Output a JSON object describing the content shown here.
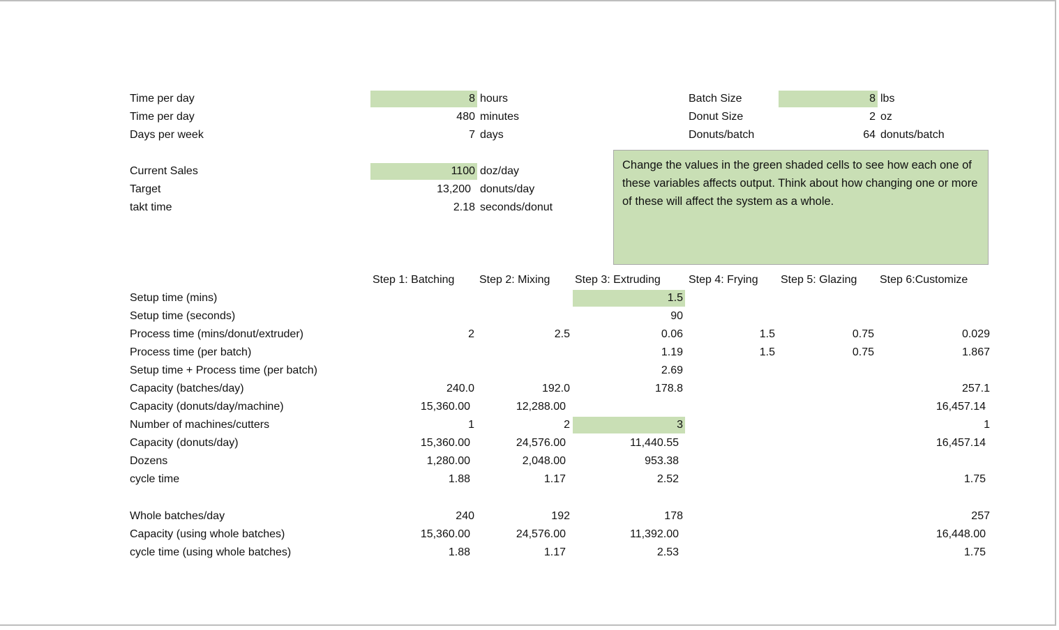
{
  "general": {
    "rows": [
      [
        "Time per day",
        "8",
        "hours"
      ],
      [
        "Time per day",
        "480",
        "minutes"
      ],
      [
        "Days per week",
        "7",
        "days"
      ],
      [
        "Current Sales",
        "1100",
        "doz/day"
      ],
      [
        "Target",
        "13,200",
        "donuts/day"
      ],
      [
        "takt time",
        "2.18",
        "seconds/donut"
      ]
    ]
  },
  "batch": {
    "rows": [
      [
        "Batch Size",
        "8",
        "lbs"
      ],
      [
        "Donut Size",
        "2",
        "oz"
      ],
      [
        "Donuts/batch",
        "64",
        "donuts/batch"
      ]
    ]
  },
  "note": "Change the values in the green shaded cells to see how each one of these variables affects output. Think about how changing one or more of these will affect the system as a whole.",
  "steps": {
    "headers": [
      "Step 1: Batching",
      "Step 2: Mixing",
      "Step 3: Extruding",
      "Step 4: Frying",
      "Step 5: Glazing",
      "Step 6:Customize"
    ],
    "rows": [
      {
        "label": "Setup time (mins)",
        "cells": [
          null,
          null,
          "1.5",
          null,
          null,
          null
        ]
      },
      {
        "label": "Setup time (seconds)",
        "cells": [
          null,
          null,
          "90",
          null,
          null,
          null
        ]
      },
      {
        "label": "Process time (mins/donut/extruder)",
        "cells": [
          "2",
          "2.5",
          "0.06",
          "1.5",
          "0.75",
          "0.029"
        ]
      },
      {
        "label": "Process time (per batch)",
        "cells": [
          null,
          null,
          "1.19",
          "1.5",
          "0.75",
          "1.867"
        ]
      },
      {
        "label": "Setup time + Process time (per batch)",
        "cells": [
          null,
          null,
          "2.69",
          null,
          null,
          null
        ]
      },
      {
        "label": "Capacity (batches/day)",
        "cells": [
          "240.0",
          "192.0",
          "178.8",
          null,
          null,
          "257.1"
        ]
      },
      {
        "label": "Capacity (donuts/day/machine)",
        "cells": [
          "15,360.00",
          "12,288.00",
          null,
          null,
          null,
          "16,457.14"
        ]
      },
      {
        "label": "Number of machines/cutters",
        "cells": [
          "1",
          "2",
          "3",
          null,
          null,
          "1"
        ]
      },
      {
        "label": "Capacity (donuts/day)",
        "cells": [
          "15,360.00",
          "24,576.00",
          "11,440.55",
          null,
          null,
          "16,457.14"
        ]
      },
      {
        "label": "Dozens",
        "cells": [
          "1,280.00",
          "2,048.00",
          "953.38",
          null,
          null,
          null
        ]
      },
      {
        "label": "cycle time",
        "cells": [
          "1.88",
          "1.17",
          "2.52",
          null,
          null,
          "1.75"
        ]
      },
      {
        "label": "Whole batches/day",
        "cells": [
          "240",
          "192",
          "178",
          null,
          null,
          "257"
        ]
      },
      {
        "label": "Capacity (using whole batches)",
        "cells": [
          "15,360.00",
          "24,576.00",
          "11,392.00",
          null,
          null,
          "16,448.00"
        ]
      },
      {
        "label": "cycle time (using whole batches)",
        "cells": [
          "1.88",
          "1.17",
          "2.53",
          null,
          null,
          "1.75"
        ]
      }
    ]
  }
}
